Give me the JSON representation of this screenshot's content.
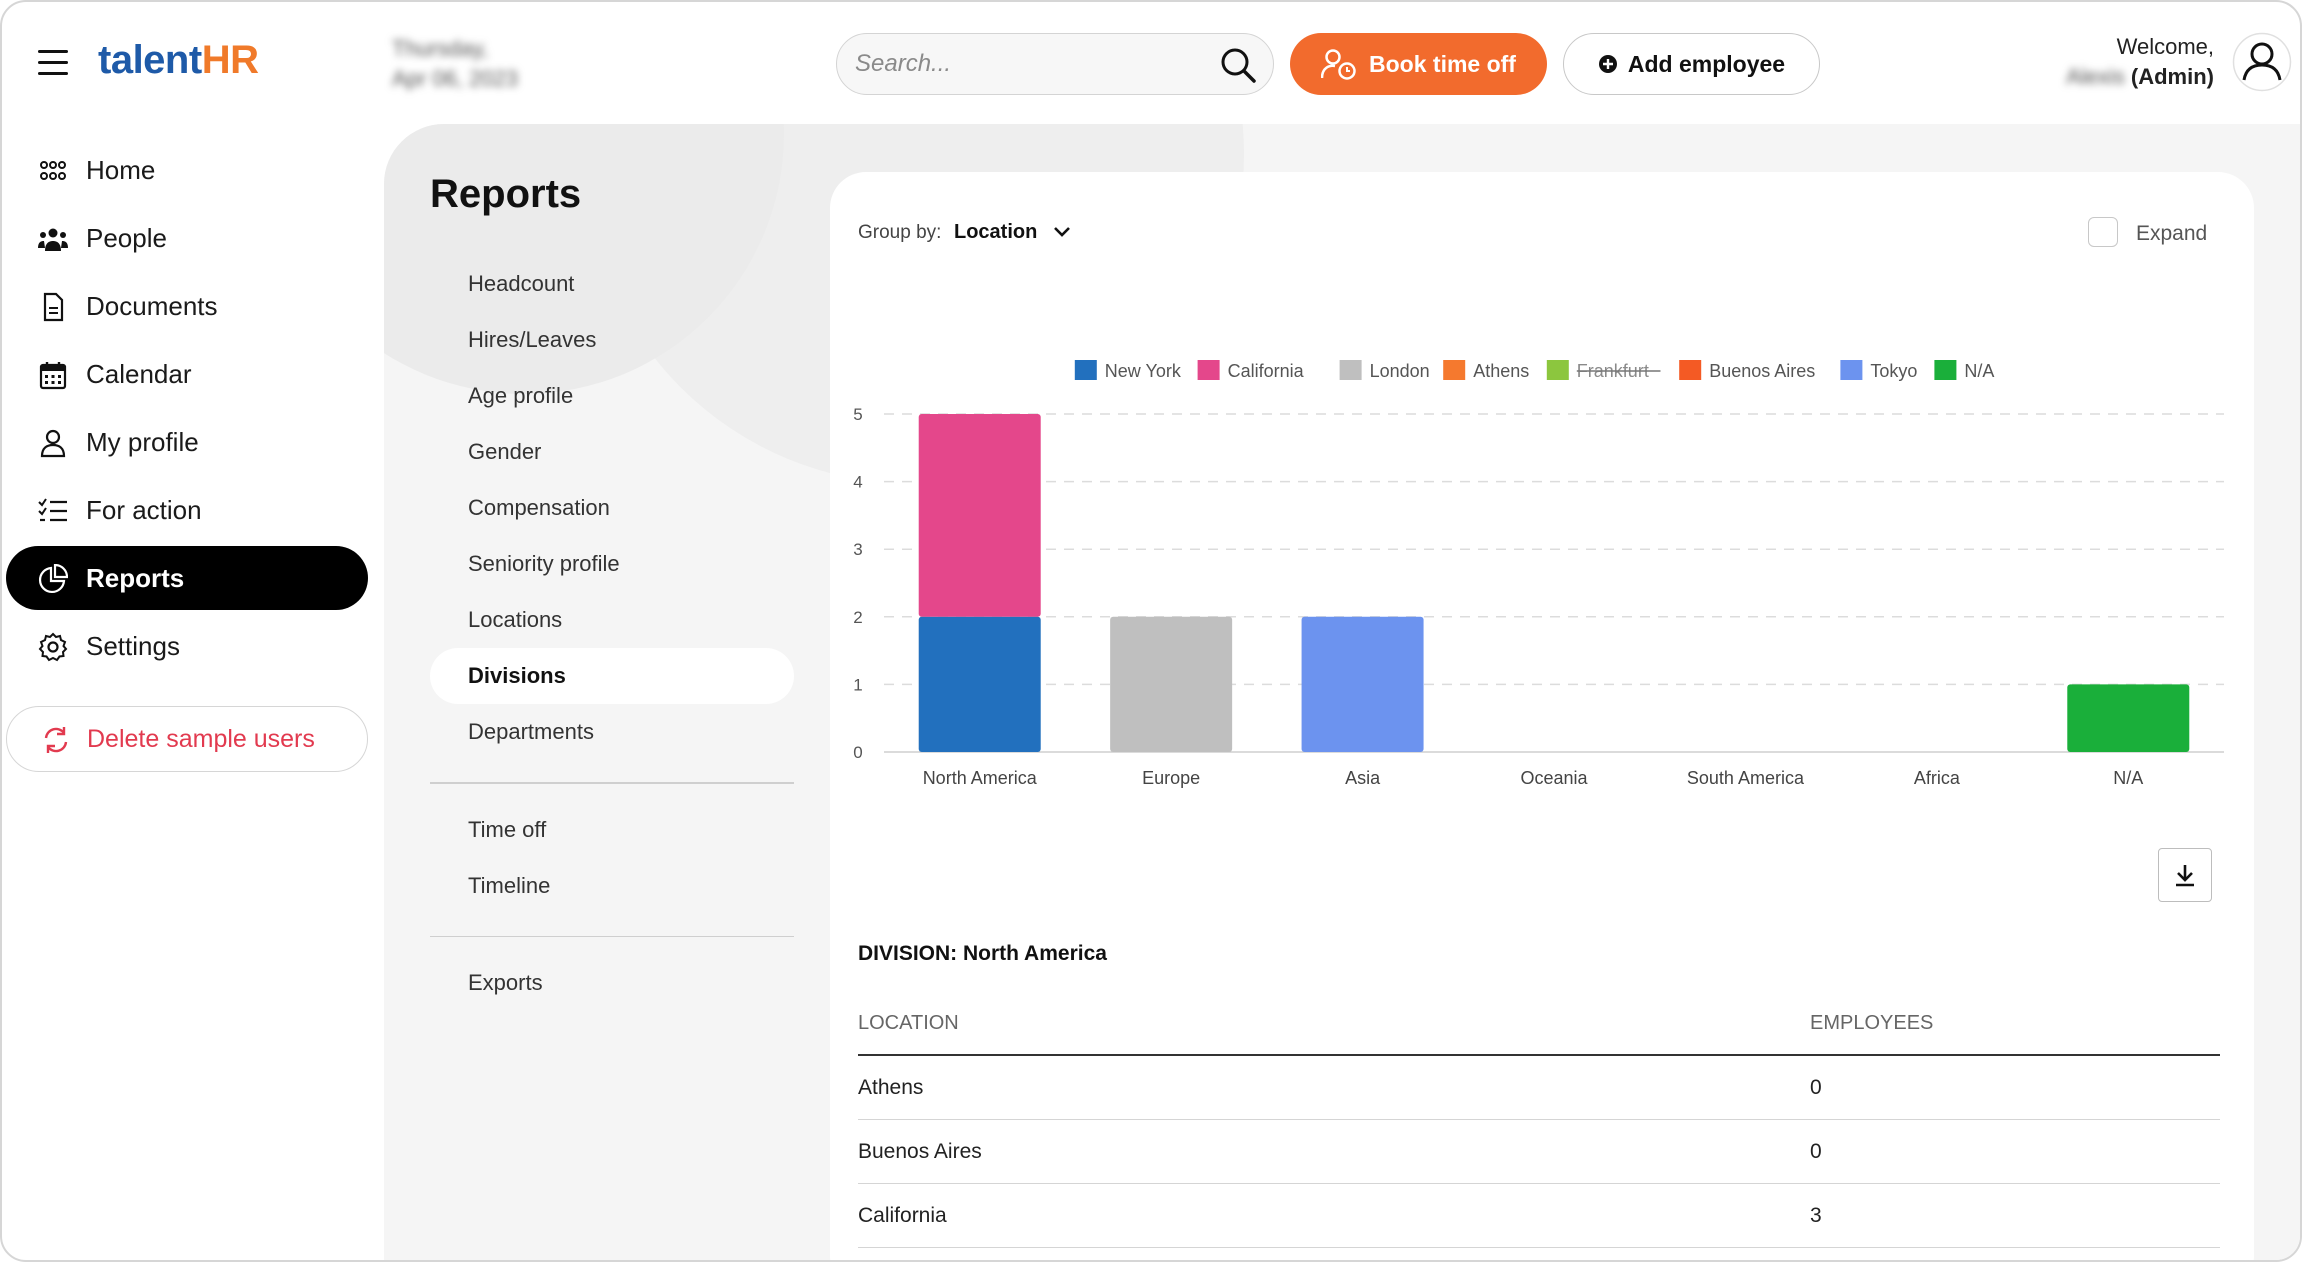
{
  "header": {
    "logo_left": "talent",
    "logo_right": "HR",
    "date_line1": "Thursday,",
    "date_line2": "Apr 06, 2023",
    "search_placeholder": "Search...",
    "book_label": "Book time off",
    "add_label": "Add employee",
    "welcome": "Welcome,",
    "user_name": "Alexis",
    "user_role": "(Admin)"
  },
  "sidebar": {
    "items": [
      {
        "label": "Home",
        "icon": "grid-icon"
      },
      {
        "label": "People",
        "icon": "people-icon"
      },
      {
        "label": "Documents",
        "icon": "document-icon"
      },
      {
        "label": "Calendar",
        "icon": "calendar-icon"
      },
      {
        "label": "My profile",
        "icon": "person-icon"
      },
      {
        "label": "For action",
        "icon": "checklist-icon"
      },
      {
        "label": "Reports",
        "icon": "pie-chart-icon"
      },
      {
        "label": "Settings",
        "icon": "gear-icon"
      }
    ],
    "delete_label": "Delete sample users"
  },
  "reports": {
    "title": "Reports",
    "group1": [
      "Headcount",
      "Hires/Leaves",
      "Age profile",
      "Gender",
      "Compensation",
      "Seniority profile",
      "Locations",
      "Divisions",
      "Departments"
    ],
    "group2": [
      "Time off",
      "Timeline"
    ],
    "group3": [
      "Exports"
    ],
    "active": "Divisions"
  },
  "card": {
    "groupby_label": "Group by:",
    "groupby_value": "Location",
    "expand_label": "Expand",
    "division_title": "DIVISION: North America",
    "table": {
      "headers": [
        "LOCATION",
        "EMPLOYEES"
      ],
      "rows": [
        [
          "Athens",
          "0"
        ],
        [
          "Buenos Aires",
          "0"
        ],
        [
          "California",
          "3"
        ]
      ]
    }
  },
  "chart_data": {
    "type": "bar",
    "stacked": true,
    "categories": [
      "North America",
      "Europe",
      "Asia",
      "Oceania",
      "South America",
      "Africa",
      "N/A"
    ],
    "ylim": [
      0,
      5
    ],
    "yticks": [
      0,
      1,
      2,
      3,
      4,
      5
    ],
    "grid": true,
    "legend_position": "top",
    "series": [
      {
        "name": "New York",
        "color": "#2270be",
        "values": [
          2,
          0,
          0,
          0,
          0,
          0,
          0
        ]
      },
      {
        "name": "California",
        "color": "#e4478b",
        "values": [
          3,
          0,
          0,
          0,
          0,
          0,
          0
        ]
      },
      {
        "name": "London",
        "color": "#bfbfbf",
        "values": [
          0,
          2,
          0,
          0,
          0,
          0,
          0
        ]
      },
      {
        "name": "Athens",
        "color": "#f5792e",
        "values": [
          0,
          0,
          0,
          0,
          0,
          0,
          0
        ]
      },
      {
        "name": "Frankfurt",
        "color": "#8cc63e",
        "values": [
          0,
          0,
          0,
          0,
          0,
          0,
          0
        ],
        "hidden": true
      },
      {
        "name": "Buenos Aires",
        "color": "#f45a24",
        "values": [
          0,
          0,
          0,
          0,
          0,
          0,
          0
        ]
      },
      {
        "name": "Tokyo",
        "color": "#6c93ef",
        "values": [
          0,
          0,
          2,
          0,
          0,
          0,
          0
        ]
      },
      {
        "name": "N/A",
        "color": "#1aaf3a",
        "values": [
          0,
          0,
          0,
          0,
          0,
          0,
          1
        ]
      }
    ]
  }
}
